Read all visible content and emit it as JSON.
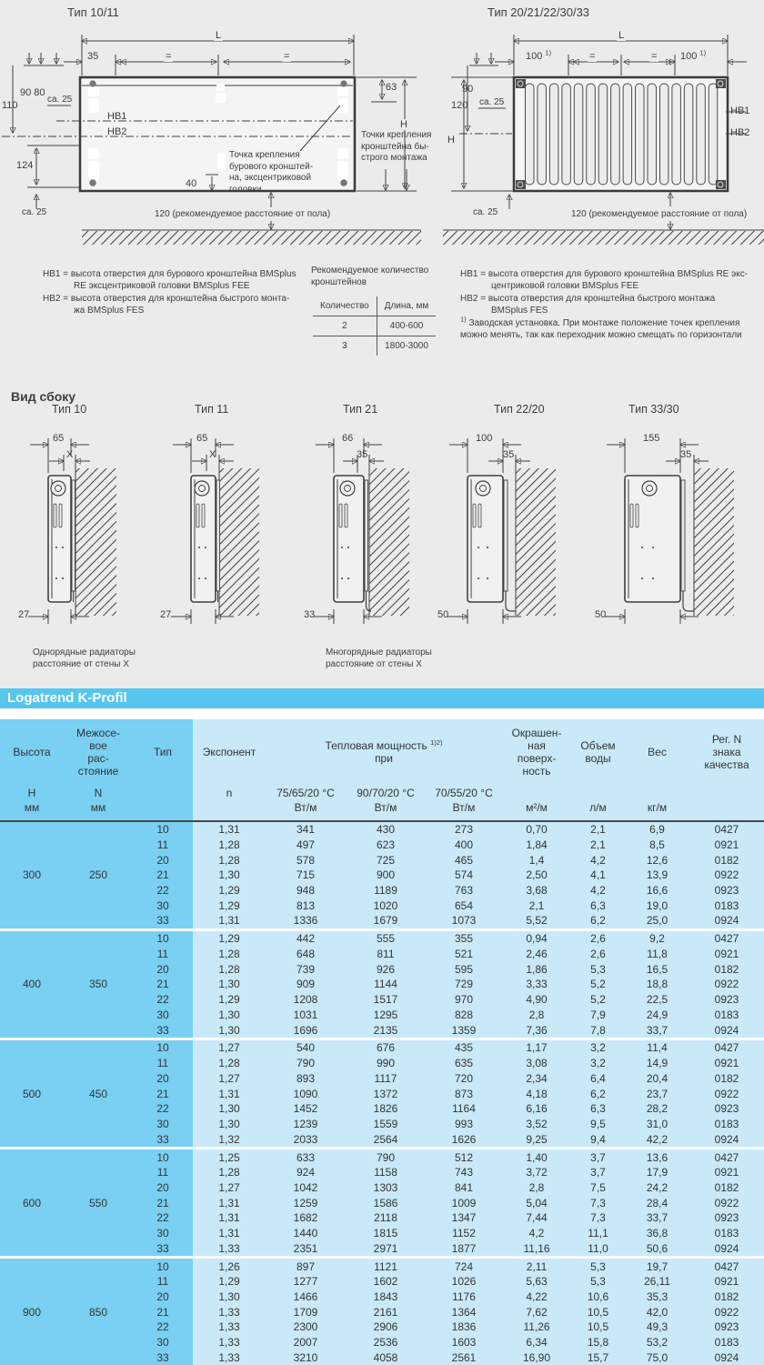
{
  "colors": {
    "bar_bg": "#56c6ef",
    "header_dark": "#79d0f2",
    "cell_light": "#c9e9f8",
    "section_bg": "#ebebeb",
    "text": "#3d3d3d"
  },
  "top": {
    "left": {
      "title": "Тип 10/11",
      "L": "L",
      "d35": "35",
      "eq": "=",
      "d9080": "90 80",
      "d110": "110",
      "ca25_top": "ca. 25",
      "hb1": "HB1",
      "hb2": "HB2",
      "d124": "124",
      "ca25_bottom": "ca. 25",
      "d63": "63",
      "H": "H",
      "d40": "40",
      "floor": "120 (рекомендуемое расстояние от пола)",
      "callout_drill": "Точка крепления\nбурового кронштей-\nна, эксцентриковой\nголовки",
      "callout_quick": "Точки крепления\nкронштейна бы-\nстрого монтажа"
    },
    "right": {
      "title": "Тип 20/21/22/30/33",
      "L": "L",
      "d100": "100",
      "sup": "1)",
      "eq": "=",
      "d90": "90",
      "d120": "120",
      "ca25_top": "ca. 25",
      "H": "H",
      "hb1": "HB1",
      "hb2": "HB2",
      "ca25_bottom": "ca. 25",
      "floor": "120 (рекомендуемое расстояние от пола)"
    },
    "legend_left": {
      "hb1": "HB1 = высота отверстия для бурового кронштейна BMSplus\nRE эксцентриковой головки BMSplus FEE",
      "hb2": "HB2 = высота отверстия для кронштейна быстрого монта-\nжа BMSplus FES"
    },
    "bracket_box": {
      "title": "Рекомендуемое количество\nкронштейнов",
      "col_qty": "Количество",
      "col_len": "Длина, мм",
      "rows": [
        [
          "2",
          "400-600"
        ],
        [
          "3",
          "1800-3000"
        ]
      ]
    },
    "legend_right": {
      "hb1": "HB1 = высота отверстия для бурового кронштейна BMSplus RE экс-\nцентриковой головки BMSplus FEE",
      "hb2": "HB2 = высота отверстия для кронштейна быстрого монтажа\nBMSplus FES",
      "fn_sup": "1)",
      "fn": "Заводская установка. При монтаже положение точек крепления\nможно менять, так как переходник можно смещать по горизонтали"
    }
  },
  "side": {
    "heading": "Вид сбоку",
    "items": [
      {
        "title": "Тип 10",
        "d_top": "65",
        "d_mid": "X",
        "d_bot": "27"
      },
      {
        "title": "Тип 11",
        "d_top": "65",
        "d_mid": "X",
        "d_bot": "27"
      },
      {
        "title": "Тип 21",
        "d_top": "66",
        "d_mid": "35",
        "d_bot": "33"
      },
      {
        "title": "Тип 22/20",
        "d_top": "100",
        "d_mid": "35",
        "d_bot": "50"
      },
      {
        "title": "Тип 33/30",
        "d_top": "155",
        "d_mid": "35",
        "d_bot": "50"
      }
    ],
    "caption_left": "Однорядные радиаторы\nрасстояние от стены X",
    "caption_right": "Многорядные радиаторы\nрасстояние от стены X"
  },
  "table": {
    "bar_title": "Logatrend K-Profil",
    "head": {
      "height_l1": "Высота",
      "height_l2": "H",
      "height_l3": "мм",
      "spacing_l1": "Межосе-\nвое\nрас-\nстояние",
      "spacing_l2": "N",
      "spacing_l3": "мм",
      "type": "Тип",
      "exponent_l1": "Экспонент",
      "exponent_l2": "n",
      "power_title": "Тепловая мощность",
      "power_sup": "1)2)",
      "power_sub": "при",
      "t75": "75/65/20 °C",
      "t90": "90/70/20 °C",
      "t70": "70/55/20 °C",
      "unit_w": "Вт/м",
      "surface": "Окрашен-\nная\nповерх-\nность",
      "unit_surface": "м²/м",
      "volume": "Объем\nводы",
      "unit_volume": "л/м",
      "weight": "Вес",
      "unit_weight": "кг/м",
      "reg": "Рег. N\nзнака\nкачества"
    },
    "groups": [
      {
        "height": "300",
        "spacing": "250",
        "rows": [
          [
            "10",
            "1,31",
            "341",
            "430",
            "273",
            "0,70",
            "2,1",
            "6,9",
            "0427"
          ],
          [
            "11",
            "1,28",
            "497",
            "623",
            "400",
            "1,84",
            "2,1",
            "8,5",
            "0921"
          ],
          [
            "20",
            "1,28",
            "578",
            "725",
            "465",
            "1,4",
            "4,2",
            "12,6",
            "0182"
          ],
          [
            "21",
            "1,30",
            "715",
            "900",
            "574",
            "2,50",
            "4,1",
            "13,9",
            "0922"
          ],
          [
            "22",
            "1,29",
            "948",
            "1189",
            "763",
            "3,68",
            "4,2",
            "16,6",
            "0923"
          ],
          [
            "30",
            "1,29",
            "813",
            "1020",
            "654",
            "2,1",
            "6,3",
            "19,0",
            "0183"
          ],
          [
            "33",
            "1,31",
            "1336",
            "1679",
            "1073",
            "5,52",
            "6,2",
            "25,0",
            "0924"
          ]
        ]
      },
      {
        "height": "400",
        "spacing": "350",
        "rows": [
          [
            "10",
            "1,29",
            "442",
            "555",
            "355",
            "0,94",
            "2,6",
            "9,2",
            "0427"
          ],
          [
            "11",
            "1,28",
            "648",
            "811",
            "521",
            "2,46",
            "2,6",
            "11,8",
            "0921"
          ],
          [
            "20",
            "1,28",
            "739",
            "926",
            "595",
            "1,86",
            "5,3",
            "16,5",
            "0182"
          ],
          [
            "21",
            "1,30",
            "909",
            "1144",
            "729",
            "3,33",
            "5,2",
            "18,8",
            "0922"
          ],
          [
            "22",
            "1,29",
            "1208",
            "1517",
            "970",
            "4,90",
            "5,2",
            "22,5",
            "0923"
          ],
          [
            "30",
            "1,30",
            "1031",
            "1295",
            "828",
            "2,8",
            "7,9",
            "24,9",
            "0183"
          ],
          [
            "33",
            "1,30",
            "1696",
            "2135",
            "1359",
            "7,36",
            "7,8",
            "33,7",
            "0924"
          ]
        ]
      },
      {
        "height": "500",
        "spacing": "450",
        "rows": [
          [
            "10",
            "1,27",
            "540",
            "676",
            "435",
            "1,17",
            "3,2",
            "11,4",
            "0427"
          ],
          [
            "11",
            "1,28",
            "790",
            "990",
            "635",
            "3,08",
            "3,2",
            "14,9",
            "0921"
          ],
          [
            "20",
            "1,27",
            "893",
            "1117",
            "720",
            "2,34",
            "6,4",
            "20,4",
            "0182"
          ],
          [
            "21",
            "1,31",
            "1090",
            "1372",
            "873",
            "4,18",
            "6,2",
            "23,7",
            "0922"
          ],
          [
            "22",
            "1,30",
            "1452",
            "1826",
            "1164",
            "6,16",
            "6,3",
            "28,2",
            "0923"
          ],
          [
            "30",
            "1,30",
            "1239",
            "1559",
            "993",
            "3,52",
            "9,5",
            "31,0",
            "0183"
          ],
          [
            "33",
            "1,32",
            "2033",
            "2564",
            "1626",
            "9,25",
            "9,4",
            "42,2",
            "0924"
          ]
        ]
      },
      {
        "height": "600",
        "spacing": "550",
        "rows": [
          [
            "10",
            "1,25",
            "633",
            "790",
            "512",
            "1,40",
            "3,7",
            "13,6",
            "0427"
          ],
          [
            "11",
            "1,28",
            "924",
            "1158",
            "743",
            "3,72",
            "3,7",
            "17,9",
            "0921"
          ],
          [
            "20",
            "1,27",
            "1042",
            "1303",
            "841",
            "2,8",
            "7,5",
            "24,2",
            "0182"
          ],
          [
            "21",
            "1,31",
            "1259",
            "1586",
            "1009",
            "5,04",
            "7,3",
            "28,4",
            "0922"
          ],
          [
            "22",
            "1,31",
            "1682",
            "2118",
            "1347",
            "7,44",
            "7,3",
            "33,7",
            "0923"
          ],
          [
            "30",
            "1,31",
            "1440",
            "1815",
            "1152",
            "4,2",
            "11,1",
            "36,8",
            "0183"
          ],
          [
            "33",
            "1,33",
            "2351",
            "2971",
            "1877",
            "11,16",
            "11,0",
            "50,6",
            "0924"
          ]
        ]
      },
      {
        "height": "900",
        "spacing": "850",
        "rows": [
          [
            "10",
            "1,26",
            "897",
            "1121",
            "724",
            "2,11",
            "5,3",
            "19,7",
            "0427"
          ],
          [
            "11",
            "1,29",
            "1277",
            "1602",
            "1026",
            "5,63",
            "5,3",
            "26,11",
            "0921"
          ],
          [
            "20",
            "1,30",
            "1466",
            "1843",
            "1176",
            "4,22",
            "10,6",
            "35,3",
            "0182"
          ],
          [
            "21",
            "1,33",
            "1709",
            "2161",
            "1364",
            "7,62",
            "10,5",
            "42,0",
            "0922"
          ],
          [
            "22",
            "1,33",
            "2300",
            "2906",
            "1836",
            "11,26",
            "10,5",
            "49,3",
            "0923"
          ],
          [
            "30",
            "1,33",
            "2007",
            "2536",
            "1603",
            "6,34",
            "15,8",
            "53,2",
            "0183"
          ],
          [
            "33",
            "1,33",
            "3210",
            "4058",
            "2561",
            "16,90",
            "15,7",
            "75,0",
            "0924"
          ]
        ]
      }
    ]
  }
}
